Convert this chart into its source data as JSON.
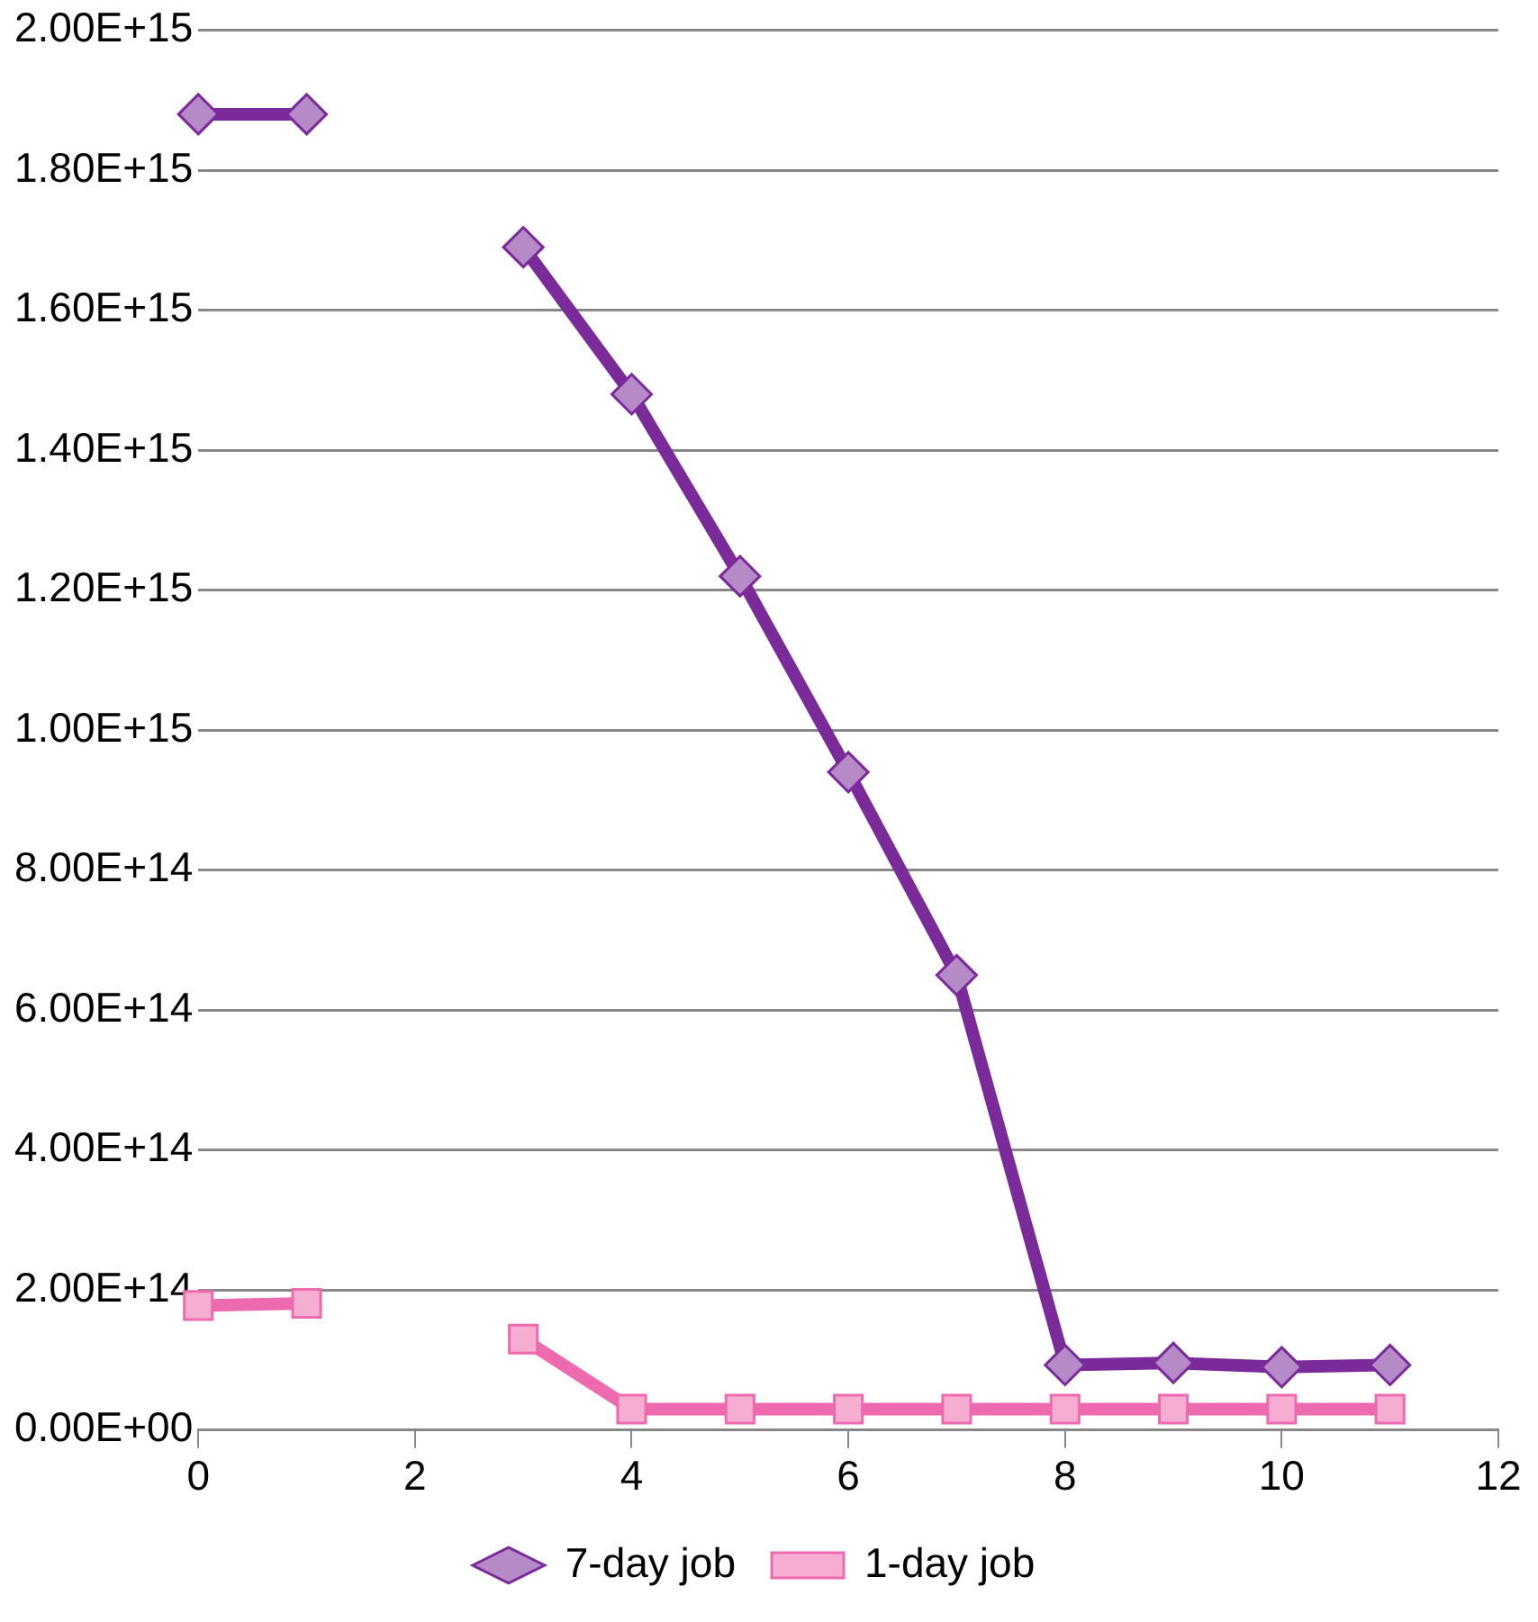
{
  "chart_data": {
    "type": "line",
    "x": [
      0,
      1,
      2,
      3,
      4,
      5,
      6,
      7,
      8,
      9,
      10,
      11
    ],
    "series": [
      {
        "name": "7-day job",
        "color": "#7b2a9a",
        "marker": "diamond",
        "values": [
          1880000000000000.0,
          1880000000000000.0,
          null,
          1690000000000000.0,
          1480000000000000.0,
          1220000000000000.0,
          940000000000000.0,
          650000000000000.0,
          93000000000000.0,
          96000000000000.0,
          90000000000000.0,
          93000000000000.0
        ]
      },
      {
        "name": "1-day job",
        "color": "#ee6aae",
        "marker": "square",
        "values": [
          178000000000000.0,
          181000000000000.0,
          null,
          130000000000000.0,
          30000000000000.0,
          30000000000000.0,
          30000000000000.0,
          30000000000000.0,
          30000000000000.0,
          30000000000000.0,
          30000000000000.0,
          30000000000000.0
        ]
      }
    ],
    "xlim": [
      0,
      12
    ],
    "xticks": [
      0,
      2,
      4,
      6,
      8,
      10,
      12
    ],
    "ylim": [
      0,
      2000000000000000.0
    ],
    "yticks": [
      {
        "value": 0,
        "label": "0.00E+00"
      },
      {
        "value": 200000000000000.0,
        "label": "2.00E+14"
      },
      {
        "value": 400000000000000.0,
        "label": "4.00E+14"
      },
      {
        "value": 600000000000000.0,
        "label": "6.00E+14"
      },
      {
        "value": 800000000000000.0,
        "label": "8.00E+14"
      },
      {
        "value": 1000000000000000.0,
        "label": "1.00E+15"
      },
      {
        "value": 1200000000000000.0,
        "label": "1.20E+15"
      },
      {
        "value": 1400000000000000.0,
        "label": "1.40E+15"
      },
      {
        "value": 1600000000000000.0,
        "label": "1.60E+15"
      },
      {
        "value": 1800000000000000.0,
        "label": "1.80E+15"
      },
      {
        "value": 2000000000000000.0,
        "label": "2.00E+15"
      }
    ],
    "grid": "y",
    "legend": "bottom",
    "line_style": "solid"
  }
}
